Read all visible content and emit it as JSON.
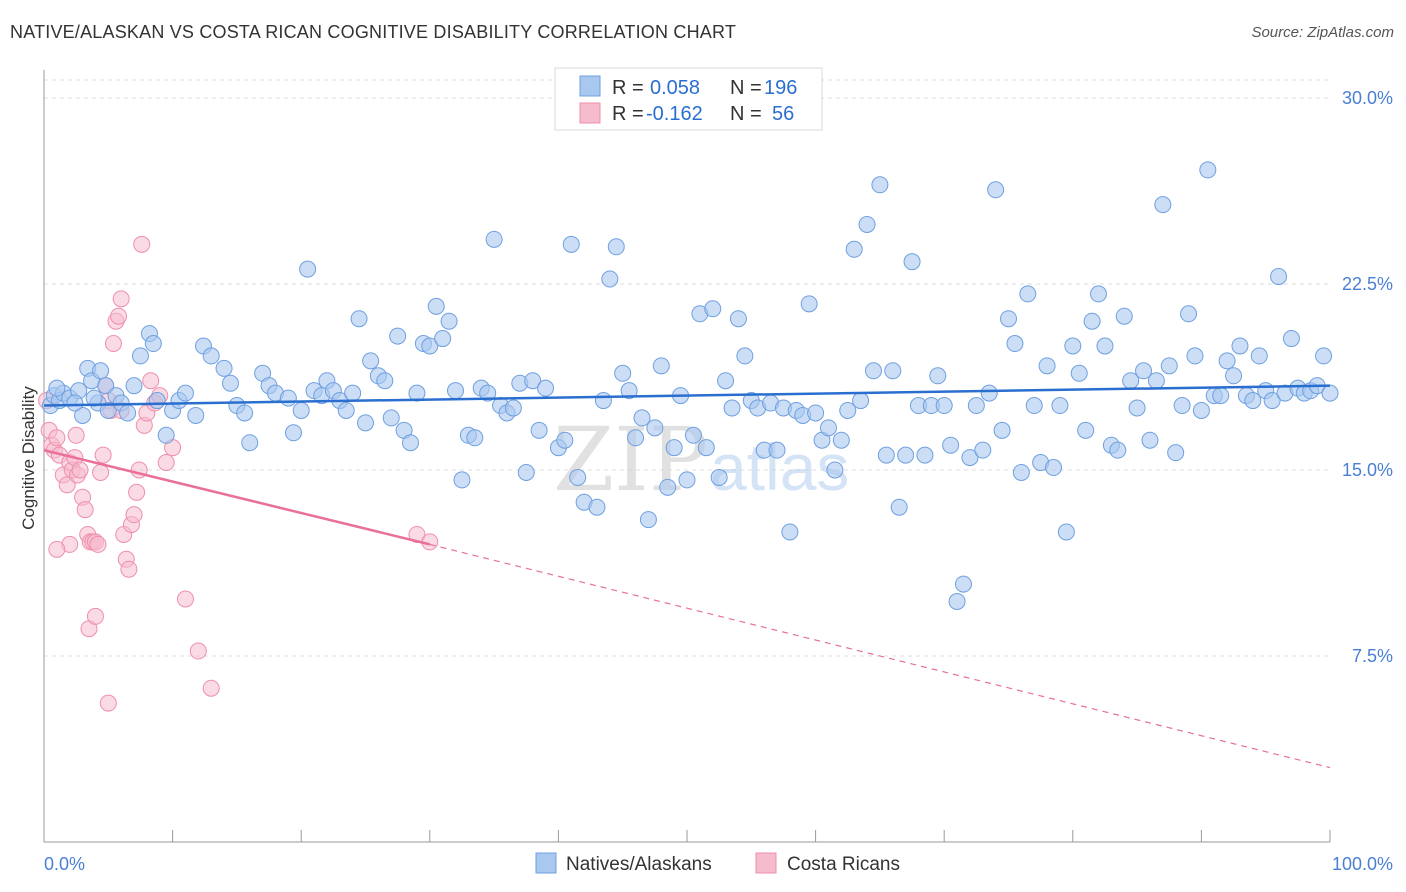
{
  "header": {
    "title": "NATIVE/ALASKAN VS COSTA RICAN COGNITIVE DISABILITY CORRELATION CHART",
    "source": "Source: ZipAtlas.com"
  },
  "watermark": {
    "zip": "ZIP",
    "atlas": "atlas"
  },
  "colors": {
    "blue_fill": "#a9c8f0",
    "blue_stroke": "#6fa0e0",
    "blue_line": "#2a6fd0",
    "pink_fill": "#f6bccd",
    "pink_stroke": "#ef8fab",
    "pink_line": "#e8709a",
    "tick_text": "#4a7fd4",
    "grid": "#dddddd"
  },
  "legend": {
    "rows": [
      {
        "r_label": "R =",
        "r_value": "0.058",
        "n_label": "N =",
        "n_value": "196"
      },
      {
        "r_label": "R =",
        "r_value": "-0.162",
        "n_label": "N =",
        "n_value": "56"
      }
    ]
  },
  "chart_data": {
    "type": "scatter",
    "title": "NATIVE/ALASKAN VS COSTA RICAN COGNITIVE DISABILITY CORRELATION CHART",
    "xlabel": "",
    "ylabel": "Cognitive Disability",
    "xlim": [
      0,
      100
    ],
    "ylim": [
      0,
      31
    ],
    "x_tick_labels": [
      "0.0%",
      "100.0%"
    ],
    "y_ticks": [
      7.5,
      15.0,
      22.5,
      30.0
    ],
    "y_tick_labels": [
      "7.5%",
      "15.0%",
      "22.5%",
      "30.0%"
    ],
    "grid": true,
    "legend_position": "top-center",
    "series": [
      {
        "name": "Natives/Alaskans",
        "color": "#a9c8f0",
        "trend": {
          "x": [
            0,
            100
          ],
          "y": [
            17.6,
            18.4
          ]
        },
        "points": [
          [
            0.5,
            17.6
          ],
          [
            0.8,
            18.0
          ],
          [
            1.2,
            17.8
          ],
          [
            1.5,
            18.1
          ],
          [
            2.0,
            17.9
          ],
          [
            2.7,
            18.2
          ],
          [
            3.0,
            17.2
          ],
          [
            3.4,
            19.1
          ],
          [
            3.7,
            18.6
          ],
          [
            4.2,
            17.7
          ],
          [
            4.4,
            19.0
          ],
          [
            4.8,
            18.4
          ],
          [
            5.0,
            17.4
          ],
          [
            5.6,
            18.0
          ],
          [
            6.0,
            17.7
          ],
          [
            6.5,
            17.3
          ],
          [
            7.0,
            18.4
          ],
          [
            7.5,
            19.6
          ],
          [
            8.2,
            20.5
          ],
          [
            8.5,
            20.1
          ],
          [
            8.8,
            17.8
          ],
          [
            9.5,
            16.4
          ],
          [
            10.0,
            17.4
          ],
          [
            10.5,
            17.8
          ],
          [
            11.0,
            18.1
          ],
          [
            11.8,
            17.2
          ],
          [
            12.4,
            20.0
          ],
          [
            13.0,
            19.6
          ],
          [
            14.0,
            19.1
          ],
          [
            14.5,
            18.5
          ],
          [
            15.0,
            17.6
          ],
          [
            15.6,
            17.3
          ],
          [
            16.0,
            16.1
          ],
          [
            17.0,
            18.9
          ],
          [
            17.5,
            18.4
          ],
          [
            18.0,
            18.1
          ],
          [
            19.0,
            17.9
          ],
          [
            19.4,
            16.5
          ],
          [
            20.0,
            17.4
          ],
          [
            20.5,
            23.1
          ],
          [
            21.0,
            18.2
          ],
          [
            21.6,
            18.0
          ],
          [
            22.0,
            18.6
          ],
          [
            22.5,
            18.2
          ],
          [
            23.0,
            17.8
          ],
          [
            23.5,
            17.4
          ],
          [
            24.0,
            18.1
          ],
          [
            24.5,
            21.1
          ],
          [
            25.0,
            16.9
          ],
          [
            25.4,
            19.4
          ],
          [
            26.0,
            18.8
          ],
          [
            26.5,
            18.6
          ],
          [
            27.0,
            17.1
          ],
          [
            27.5,
            20.4
          ],
          [
            28.0,
            16.6
          ],
          [
            28.5,
            16.1
          ],
          [
            29.0,
            18.1
          ],
          [
            29.5,
            20.1
          ],
          [
            30.0,
            20.0
          ],
          [
            30.5,
            21.6
          ],
          [
            31.0,
            20.3
          ],
          [
            31.5,
            21.0
          ],
          [
            32.0,
            18.2
          ],
          [
            32.5,
            14.6
          ],
          [
            33.0,
            16.4
          ],
          [
            33.5,
            16.3
          ],
          [
            34.0,
            18.3
          ],
          [
            34.5,
            18.1
          ],
          [
            35.0,
            24.3
          ],
          [
            35.5,
            17.6
          ],
          [
            36.0,
            17.3
          ],
          [
            36.5,
            17.5
          ],
          [
            37.0,
            18.5
          ],
          [
            37.5,
            14.9
          ],
          [
            38.0,
            18.6
          ],
          [
            38.5,
            16.6
          ],
          [
            39.0,
            18.3
          ],
          [
            40.0,
            15.9
          ],
          [
            40.5,
            16.2
          ],
          [
            41.0,
            24.1
          ],
          [
            41.5,
            14.7
          ],
          [
            42.0,
            13.7
          ],
          [
            43.0,
            13.5
          ],
          [
            43.5,
            17.8
          ],
          [
            44.0,
            22.7
          ],
          [
            44.5,
            24.0
          ],
          [
            45.0,
            18.9
          ],
          [
            45.5,
            18.2
          ],
          [
            46.0,
            16.3
          ],
          [
            46.5,
            17.1
          ],
          [
            47.0,
            13.0
          ],
          [
            47.5,
            16.7
          ],
          [
            48.0,
            19.2
          ],
          [
            48.5,
            14.3
          ],
          [
            49.0,
            15.9
          ],
          [
            49.5,
            18.0
          ],
          [
            50.0,
            14.6
          ],
          [
            50.5,
            16.4
          ],
          [
            51.0,
            21.3
          ],
          [
            51.5,
            15.9
          ],
          [
            52.0,
            21.5
          ],
          [
            52.5,
            14.7
          ],
          [
            53.0,
            18.6
          ],
          [
            53.5,
            17.5
          ],
          [
            54.0,
            21.1
          ],
          [
            54.5,
            19.6
          ],
          [
            55.0,
            17.8
          ],
          [
            55.5,
            17.5
          ],
          [
            56.0,
            15.8
          ],
          [
            56.5,
            17.7
          ],
          [
            57.0,
            15.8
          ],
          [
            57.5,
            17.5
          ],
          [
            58.0,
            12.5
          ],
          [
            58.5,
            17.4
          ],
          [
            59.0,
            17.2
          ],
          [
            59.5,
            21.7
          ],
          [
            60.0,
            17.3
          ],
          [
            60.5,
            16.2
          ],
          [
            61.0,
            16.7
          ],
          [
            61.5,
            15.0
          ],
          [
            62.0,
            16.2
          ],
          [
            62.5,
            17.4
          ],
          [
            63.0,
            23.9
          ],
          [
            63.5,
            17.8
          ],
          [
            64.0,
            24.9
          ],
          [
            64.5,
            19.0
          ],
          [
            65.0,
            26.5
          ],
          [
            65.5,
            15.6
          ],
          [
            66.0,
            19.0
          ],
          [
            66.5,
            13.5
          ],
          [
            67.0,
            15.6
          ],
          [
            67.5,
            23.4
          ],
          [
            68.0,
            17.6
          ],
          [
            68.5,
            15.6
          ],
          [
            69.0,
            17.6
          ],
          [
            69.5,
            18.8
          ],
          [
            70.0,
            17.6
          ],
          [
            70.5,
            16.0
          ],
          [
            71.0,
            9.7
          ],
          [
            71.5,
            10.4
          ],
          [
            72.0,
            15.5
          ],
          [
            72.5,
            17.6
          ],
          [
            73.0,
            15.8
          ],
          [
            73.5,
            18.1
          ],
          [
            74.0,
            26.3
          ],
          [
            74.5,
            16.6
          ],
          [
            75.0,
            21.1
          ],
          [
            75.5,
            20.1
          ],
          [
            76.0,
            14.9
          ],
          [
            76.5,
            22.1
          ],
          [
            77.0,
            17.6
          ],
          [
            77.5,
            15.3
          ],
          [
            78.0,
            19.2
          ],
          [
            78.5,
            15.1
          ],
          [
            79.0,
            17.6
          ],
          [
            79.5,
            12.5
          ],
          [
            80.0,
            20.0
          ],
          [
            80.5,
            18.9
          ],
          [
            81.0,
            16.6
          ],
          [
            81.5,
            21.0
          ],
          [
            82.0,
            22.1
          ],
          [
            82.5,
            20.0
          ],
          [
            83.0,
            16.0
          ],
          [
            83.5,
            15.8
          ],
          [
            84.0,
            21.2
          ],
          [
            84.5,
            18.6
          ],
          [
            85.0,
            17.5
          ],
          [
            85.5,
            19.0
          ],
          [
            86.0,
            16.2
          ],
          [
            86.5,
            18.6
          ],
          [
            87.0,
            25.7
          ],
          [
            87.5,
            19.2
          ],
          [
            88.0,
            15.7
          ],
          [
            88.5,
            17.6
          ],
          [
            89.0,
            21.3
          ],
          [
            89.5,
            19.6
          ],
          [
            90.0,
            17.4
          ],
          [
            90.5,
            27.1
          ],
          [
            91.0,
            18.0
          ],
          [
            91.5,
            18.0
          ],
          [
            92.0,
            19.4
          ],
          [
            92.5,
            18.8
          ],
          [
            93.0,
            20.0
          ],
          [
            93.5,
            18.0
          ],
          [
            94.0,
            17.8
          ],
          [
            94.5,
            19.6
          ],
          [
            95.0,
            18.2
          ],
          [
            95.5,
            17.8
          ],
          [
            96.0,
            22.8
          ],
          [
            96.5,
            18.1
          ],
          [
            97.0,
            20.3
          ],
          [
            97.5,
            18.3
          ],
          [
            98.0,
            18.1
          ],
          [
            98.5,
            18.2
          ],
          [
            99.0,
            18.4
          ],
          [
            99.5,
            19.6
          ],
          [
            100.0,
            18.1
          ],
          [
            1.0,
            18.3
          ],
          [
            2.4,
            17.7
          ],
          [
            3.9,
            17.9
          ]
        ]
      },
      {
        "name": "Costa Ricans",
        "color": "#f6bccd",
        "trend": {
          "x": [
            0,
            30
          ],
          "y": [
            15.8,
            12.0
          ]
        },
        "trend_extended": {
          "x": [
            30,
            100
          ],
          "y": [
            12.0,
            3.0
          ]
        },
        "points": [
          [
            0.2,
            17.8
          ],
          [
            0.4,
            16.6
          ],
          [
            0.6,
            16.0
          ],
          [
            0.8,
            15.8
          ],
          [
            1.0,
            16.3
          ],
          [
            1.2,
            15.6
          ],
          [
            1.5,
            14.8
          ],
          [
            1.8,
            14.4
          ],
          [
            2.0,
            15.3
          ],
          [
            2.2,
            15.0
          ],
          [
            2.4,
            15.5
          ],
          [
            2.6,
            14.8
          ],
          [
            2.8,
            15.0
          ],
          [
            3.0,
            13.9
          ],
          [
            3.2,
            13.4
          ],
          [
            3.4,
            12.4
          ],
          [
            3.6,
            12.1
          ],
          [
            3.8,
            12.1
          ],
          [
            4.0,
            12.1
          ],
          [
            4.2,
            12.0
          ],
          [
            4.4,
            14.9
          ],
          [
            4.6,
            15.6
          ],
          [
            4.8,
            18.4
          ],
          [
            5.0,
            17.8
          ],
          [
            5.2,
            17.4
          ],
          [
            5.4,
            20.1
          ],
          [
            5.6,
            21.0
          ],
          [
            5.8,
            21.2
          ],
          [
            6.0,
            21.9
          ],
          [
            6.2,
            12.4
          ],
          [
            6.4,
            11.4
          ],
          [
            6.6,
            11.0
          ],
          [
            6.8,
            12.8
          ],
          [
            7.0,
            13.2
          ],
          [
            7.2,
            14.1
          ],
          [
            7.4,
            15.0
          ],
          [
            7.6,
            24.1
          ],
          [
            7.8,
            16.8
          ],
          [
            8.0,
            17.3
          ],
          [
            8.3,
            18.6
          ],
          [
            8.6,
            17.7
          ],
          [
            9.0,
            18.0
          ],
          [
            9.5,
            15.3
          ],
          [
            10.0,
            15.9
          ],
          [
            11.0,
            9.8
          ],
          [
            12.0,
            7.7
          ],
          [
            13.0,
            6.2
          ],
          [
            3.5,
            8.6
          ],
          [
            4.0,
            9.1
          ],
          [
            5.0,
            5.6
          ],
          [
            2.0,
            12.0
          ],
          [
            1.0,
            11.8
          ],
          [
            2.5,
            16.4
          ],
          [
            6.0,
            17.4
          ],
          [
            29.0,
            12.4
          ],
          [
            30.0,
            12.1
          ]
        ]
      }
    ]
  },
  "bottom_legend": {
    "items": [
      {
        "label": "Natives/Alaskans"
      },
      {
        "label": "Costa Ricans"
      }
    ]
  }
}
